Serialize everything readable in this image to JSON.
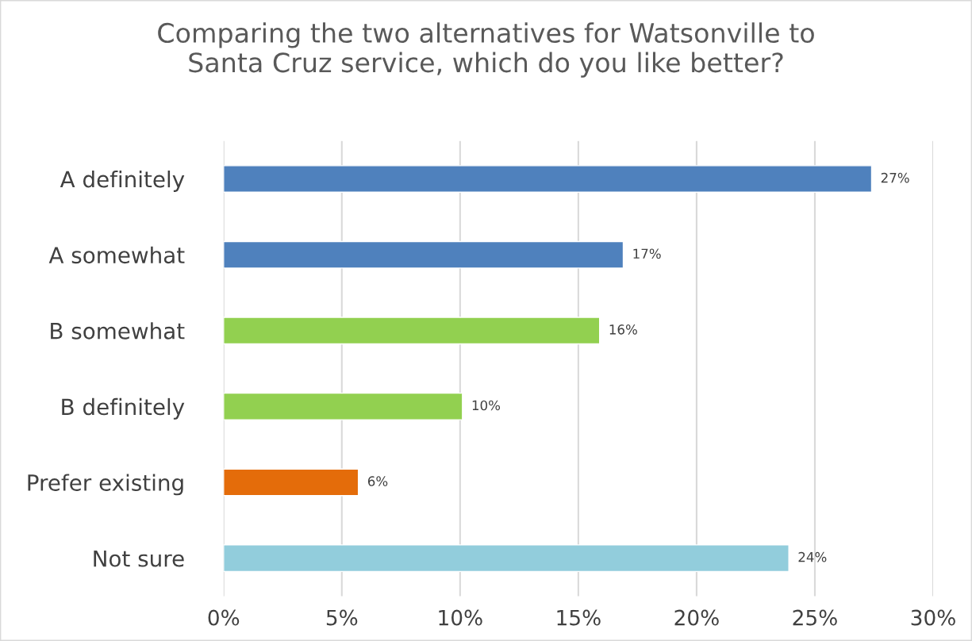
{
  "chart_data": {
    "type": "bar",
    "orientation": "horizontal",
    "title": "Comparing the two alternatives for Watsonville to\nSanta Cruz service, which do you like better?",
    "categories": [
      "A definitely",
      "A somewhat",
      "B somewhat",
      "B definitely",
      "Prefer existing",
      "Not sure"
    ],
    "values": [
      27.4,
      16.9,
      15.9,
      10.1,
      5.7,
      23.9
    ],
    "colors": [
      "#4f81bd",
      "#4f81bd",
      "#92d050",
      "#92d050",
      "#e46c0a",
      "#92cddc"
    ],
    "value_labels": [
      "27%",
      "17%",
      "16%",
      "10%",
      "6%",
      "24%"
    ],
    "xlim": [
      0,
      30
    ],
    "xticks": [
      {
        "value": 0,
        "label": "0%"
      },
      {
        "value": 5,
        "label": "5%"
      },
      {
        "value": 10,
        "label": "10%"
      },
      {
        "value": 15,
        "label": "15%"
      },
      {
        "value": 20,
        "label": "20%"
      },
      {
        "value": 25,
        "label": "25%"
      },
      {
        "value": 30,
        "label": "30%"
      }
    ],
    "grid": "x"
  }
}
